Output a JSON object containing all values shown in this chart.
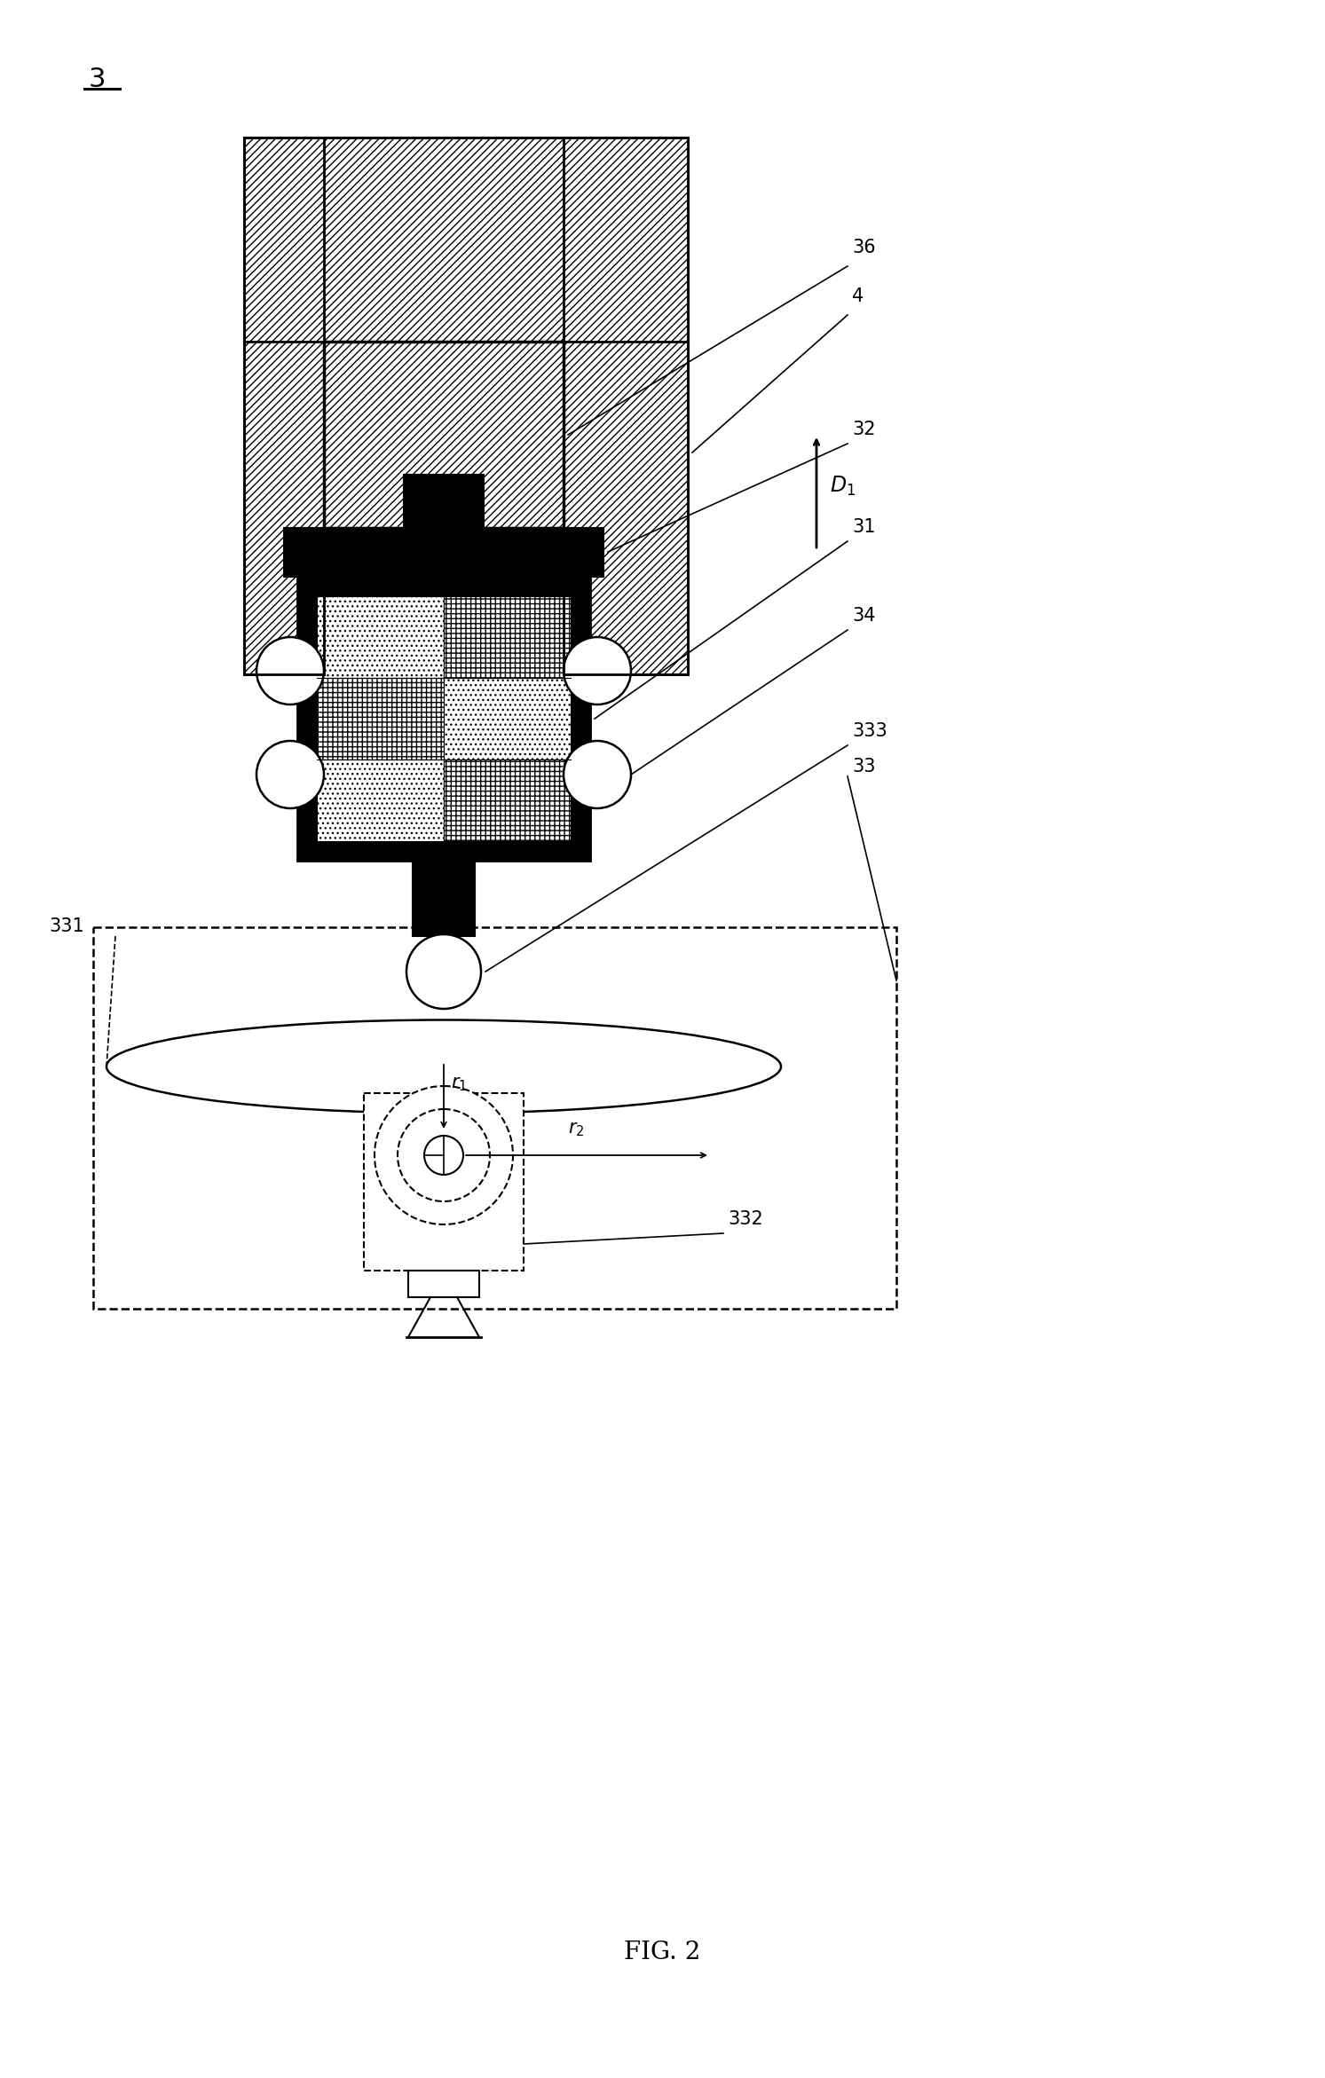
{
  "bg_color": "#ffffff",
  "lc": "#000000",
  "fig_label": "FIG. 2",
  "component_label": "3",
  "label_fontsize": 15,
  "fig_fontsize": 20
}
